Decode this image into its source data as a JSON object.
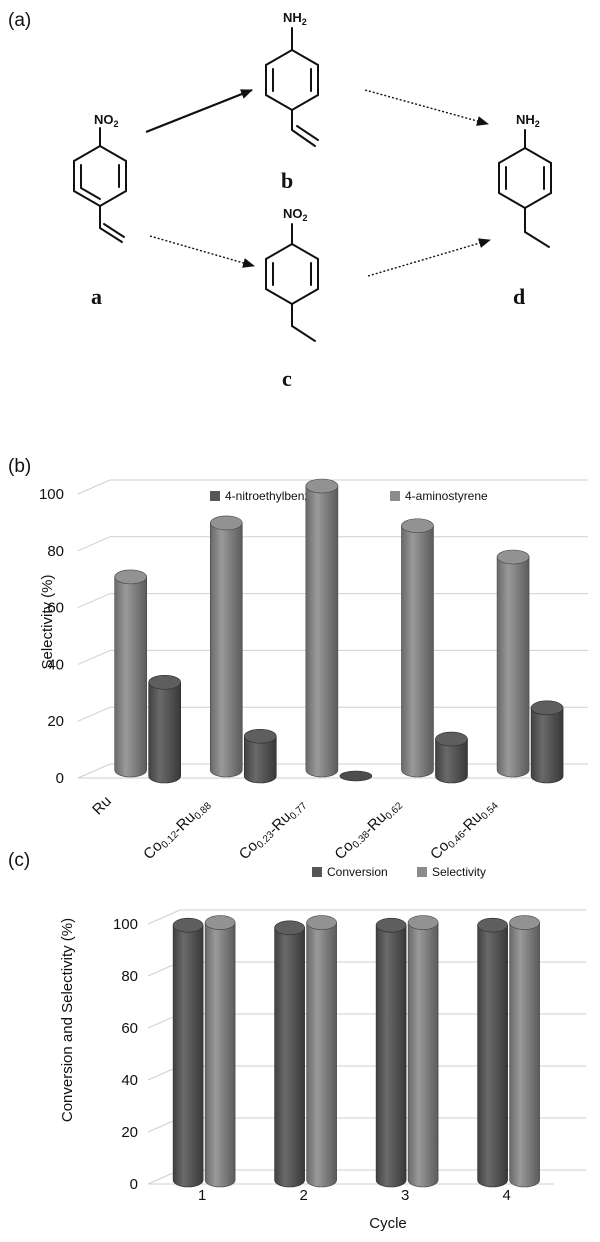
{
  "figure": {
    "panel_a_label": "(a)",
    "panel_b_label": "(b)",
    "panel_c_label": "(c)"
  },
  "scheme": {
    "compounds": [
      {
        "id": "a",
        "label": "a",
        "group_top": "NO2",
        "bottom": "vinyl"
      },
      {
        "id": "b",
        "label": "b",
        "group_top": "NH2",
        "bottom": "vinyl"
      },
      {
        "id": "c",
        "label": "c",
        "group_top": "NO2",
        "bottom": "ethyl"
      },
      {
        "id": "d",
        "label": "d",
        "group_top": "NH2",
        "bottom": "ethyl"
      }
    ],
    "nh2_text": "NH",
    "nh2_sub": "2",
    "no2_text": "NO",
    "no2_sub": "2",
    "arrows": [
      {
        "from": "a",
        "to": "b",
        "style": "solid"
      },
      {
        "from": "b",
        "to": "d",
        "style": "dotted"
      },
      {
        "from": "a",
        "to": "c",
        "style": "dotted"
      },
      {
        "from": "c",
        "to": "d",
        "style": "dotted"
      }
    ]
  },
  "chart_data": [
    {
      "type": "bar",
      "panel": "b",
      "categories": [
        {
          "main": "Ru",
          "parts": []
        },
        {
          "main": "",
          "parts": [
            [
              "Co",
              "0.12"
            ],
            [
              "-Ru",
              "0.88"
            ]
          ]
        },
        {
          "main": "",
          "parts": [
            [
              "Co",
              "0.23"
            ],
            [
              "-Ru",
              "0.77"
            ]
          ]
        },
        {
          "main": "",
          "parts": [
            [
              "Co",
              "0.38"
            ],
            [
              "-Ru",
              "0.62"
            ]
          ]
        },
        {
          "main": "",
          "parts": [
            [
              "Co",
              "0.46"
            ],
            [
              "-Ru",
              "0.54"
            ]
          ]
        }
      ],
      "series": [
        {
          "name": "4-aminostyrene",
          "color": "#8c8c8c",
          "values": [
            68,
            87,
            100,
            86,
            75
          ]
        },
        {
          "name": "4-nitroethylbenzene",
          "color": "#565656",
          "values": [
            33,
            14,
            0,
            13,
            24
          ]
        }
      ],
      "legend_order": [
        "4-nitroethylbenzene",
        "4-aminostyrene"
      ],
      "legend_position": "top",
      "ylabel": "Selectivity (%)",
      "yticks": [
        0,
        20,
        40,
        60,
        80,
        100
      ],
      "ylim": [
        0,
        100
      ],
      "grid": true
    },
    {
      "type": "bar",
      "panel": "c",
      "categories": [
        "1",
        "2",
        "3",
        "4"
      ],
      "series": [
        {
          "name": "Conversion",
          "color": "#565656",
          "values": [
            98,
            97,
            98,
            98
          ]
        },
        {
          "name": "Selectivity",
          "color": "#8c8c8c",
          "values": [
            99,
            99,
            99,
            99
          ]
        }
      ],
      "legend_position": "top",
      "xlabel": "Cycle",
      "ylabel": "Conversion and Selectivity (%)",
      "yticks": [
        0,
        20,
        40,
        60,
        80,
        100
      ],
      "ylim": [
        0,
        100
      ],
      "grid": true
    }
  ]
}
